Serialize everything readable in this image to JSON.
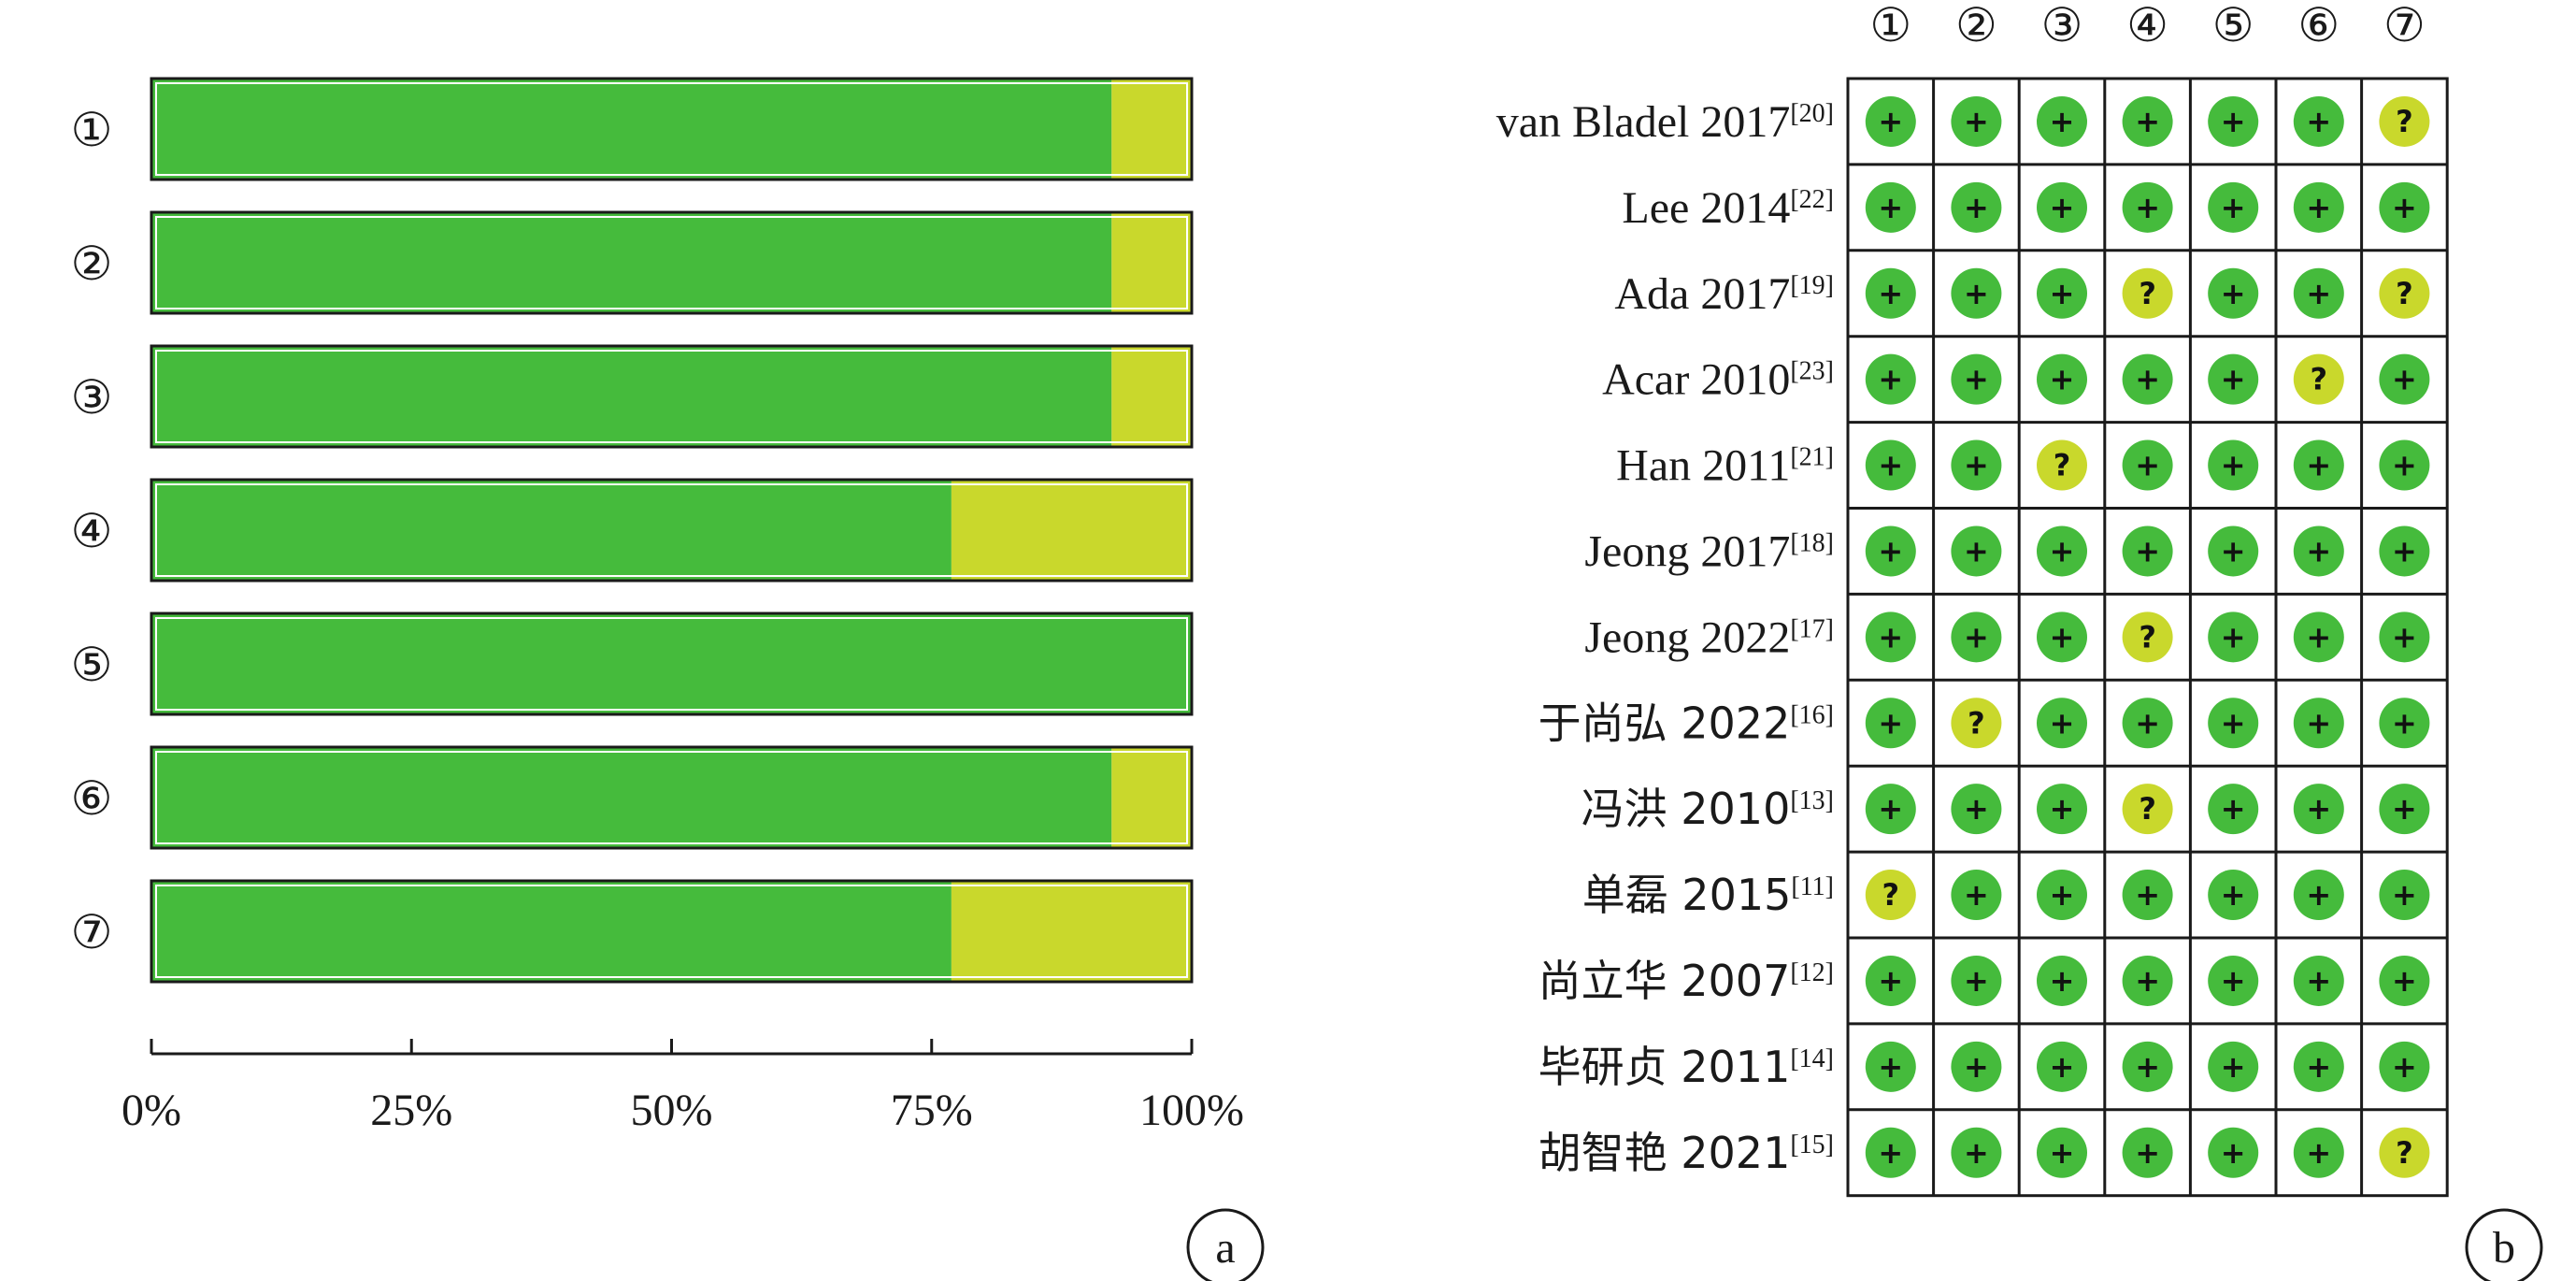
{
  "chart_data": [
    {
      "type": "bar",
      "panel_label": "a",
      "stacked": true,
      "orientation": "horizontal",
      "categories": [
        "①",
        "②",
        "③",
        "④",
        "⑤",
        "⑥",
        "⑦"
      ],
      "series": [
        {
          "values": [
            92.3,
            92.3,
            92.3,
            76.9,
            100,
            92.3,
            76.9
          ],
          "color": "#45bb3c"
        },
        {
          "values": [
            7.7,
            7.7,
            7.7,
            23.1,
            0,
            7.7,
            23.1
          ],
          "color": "#c9d82c"
        }
      ],
      "x_ticks": [
        "0%",
        "25%",
        "50%",
        "75%",
        "100%"
      ],
      "xlim": [
        0,
        100
      ]
    },
    {
      "type": "table",
      "panel_label": "b",
      "columns": [
        "①",
        "②",
        "③",
        "④",
        "⑤",
        "⑥",
        "⑦"
      ],
      "rows": [
        {
          "label": "van Bladel 2017",
          "ref": "[20]",
          "values": [
            "+",
            "+",
            "+",
            "+",
            "+",
            "+",
            "?"
          ]
        },
        {
          "label": "Lee 2014",
          "ref": "[22]",
          "values": [
            "+",
            "+",
            "+",
            "+",
            "+",
            "+",
            "+"
          ]
        },
        {
          "label": "Ada 2017",
          "ref": "[19]",
          "values": [
            "+",
            "+",
            "+",
            "?",
            "+",
            "+",
            "?"
          ]
        },
        {
          "label": "Acar 2010",
          "ref": "[23]",
          "values": [
            "+",
            "+",
            "+",
            "+",
            "+",
            "?",
            "+"
          ]
        },
        {
          "label": "Han 2011",
          "ref": "[21]",
          "values": [
            "+",
            "+",
            "?",
            "+",
            "+",
            "+",
            "+"
          ]
        },
        {
          "label": "Jeong 2017",
          "ref": "[18]",
          "values": [
            "+",
            "+",
            "+",
            "+",
            "+",
            "+",
            "+"
          ]
        },
        {
          "label": "Jeong 2022",
          "ref": "[17]",
          "values": [
            "+",
            "+",
            "+",
            "?",
            "+",
            "+",
            "+"
          ]
        },
        {
          "label": "于尚弘 2022",
          "ref": "[16]",
          "values": [
            "+",
            "?",
            "+",
            "+",
            "+",
            "+",
            "+"
          ]
        },
        {
          "label": "冯洪 2010",
          "ref": "[13]",
          "values": [
            "+",
            "+",
            "+",
            "?",
            "+",
            "+",
            "+"
          ]
        },
        {
          "label": "单磊 2015",
          "ref": "[11]",
          "values": [
            "?",
            "+",
            "+",
            "+",
            "+",
            "+",
            "+"
          ]
        },
        {
          "label": "尚立华 2007",
          "ref": "[12]",
          "values": [
            "+",
            "+",
            "+",
            "+",
            "+",
            "+",
            "+"
          ]
        },
        {
          "label": "毕研贞 2011",
          "ref": "[14]",
          "values": [
            "+",
            "+",
            "+",
            "+",
            "+",
            "+",
            "+"
          ]
        },
        {
          "label": "胡智艳 2021",
          "ref": "[15]",
          "values": [
            "+",
            "+",
            "+",
            "+",
            "+",
            "+",
            "?"
          ]
        }
      ],
      "colors": {
        "+": "#45bb3c",
        "?": "#c9d82c"
      }
    }
  ]
}
